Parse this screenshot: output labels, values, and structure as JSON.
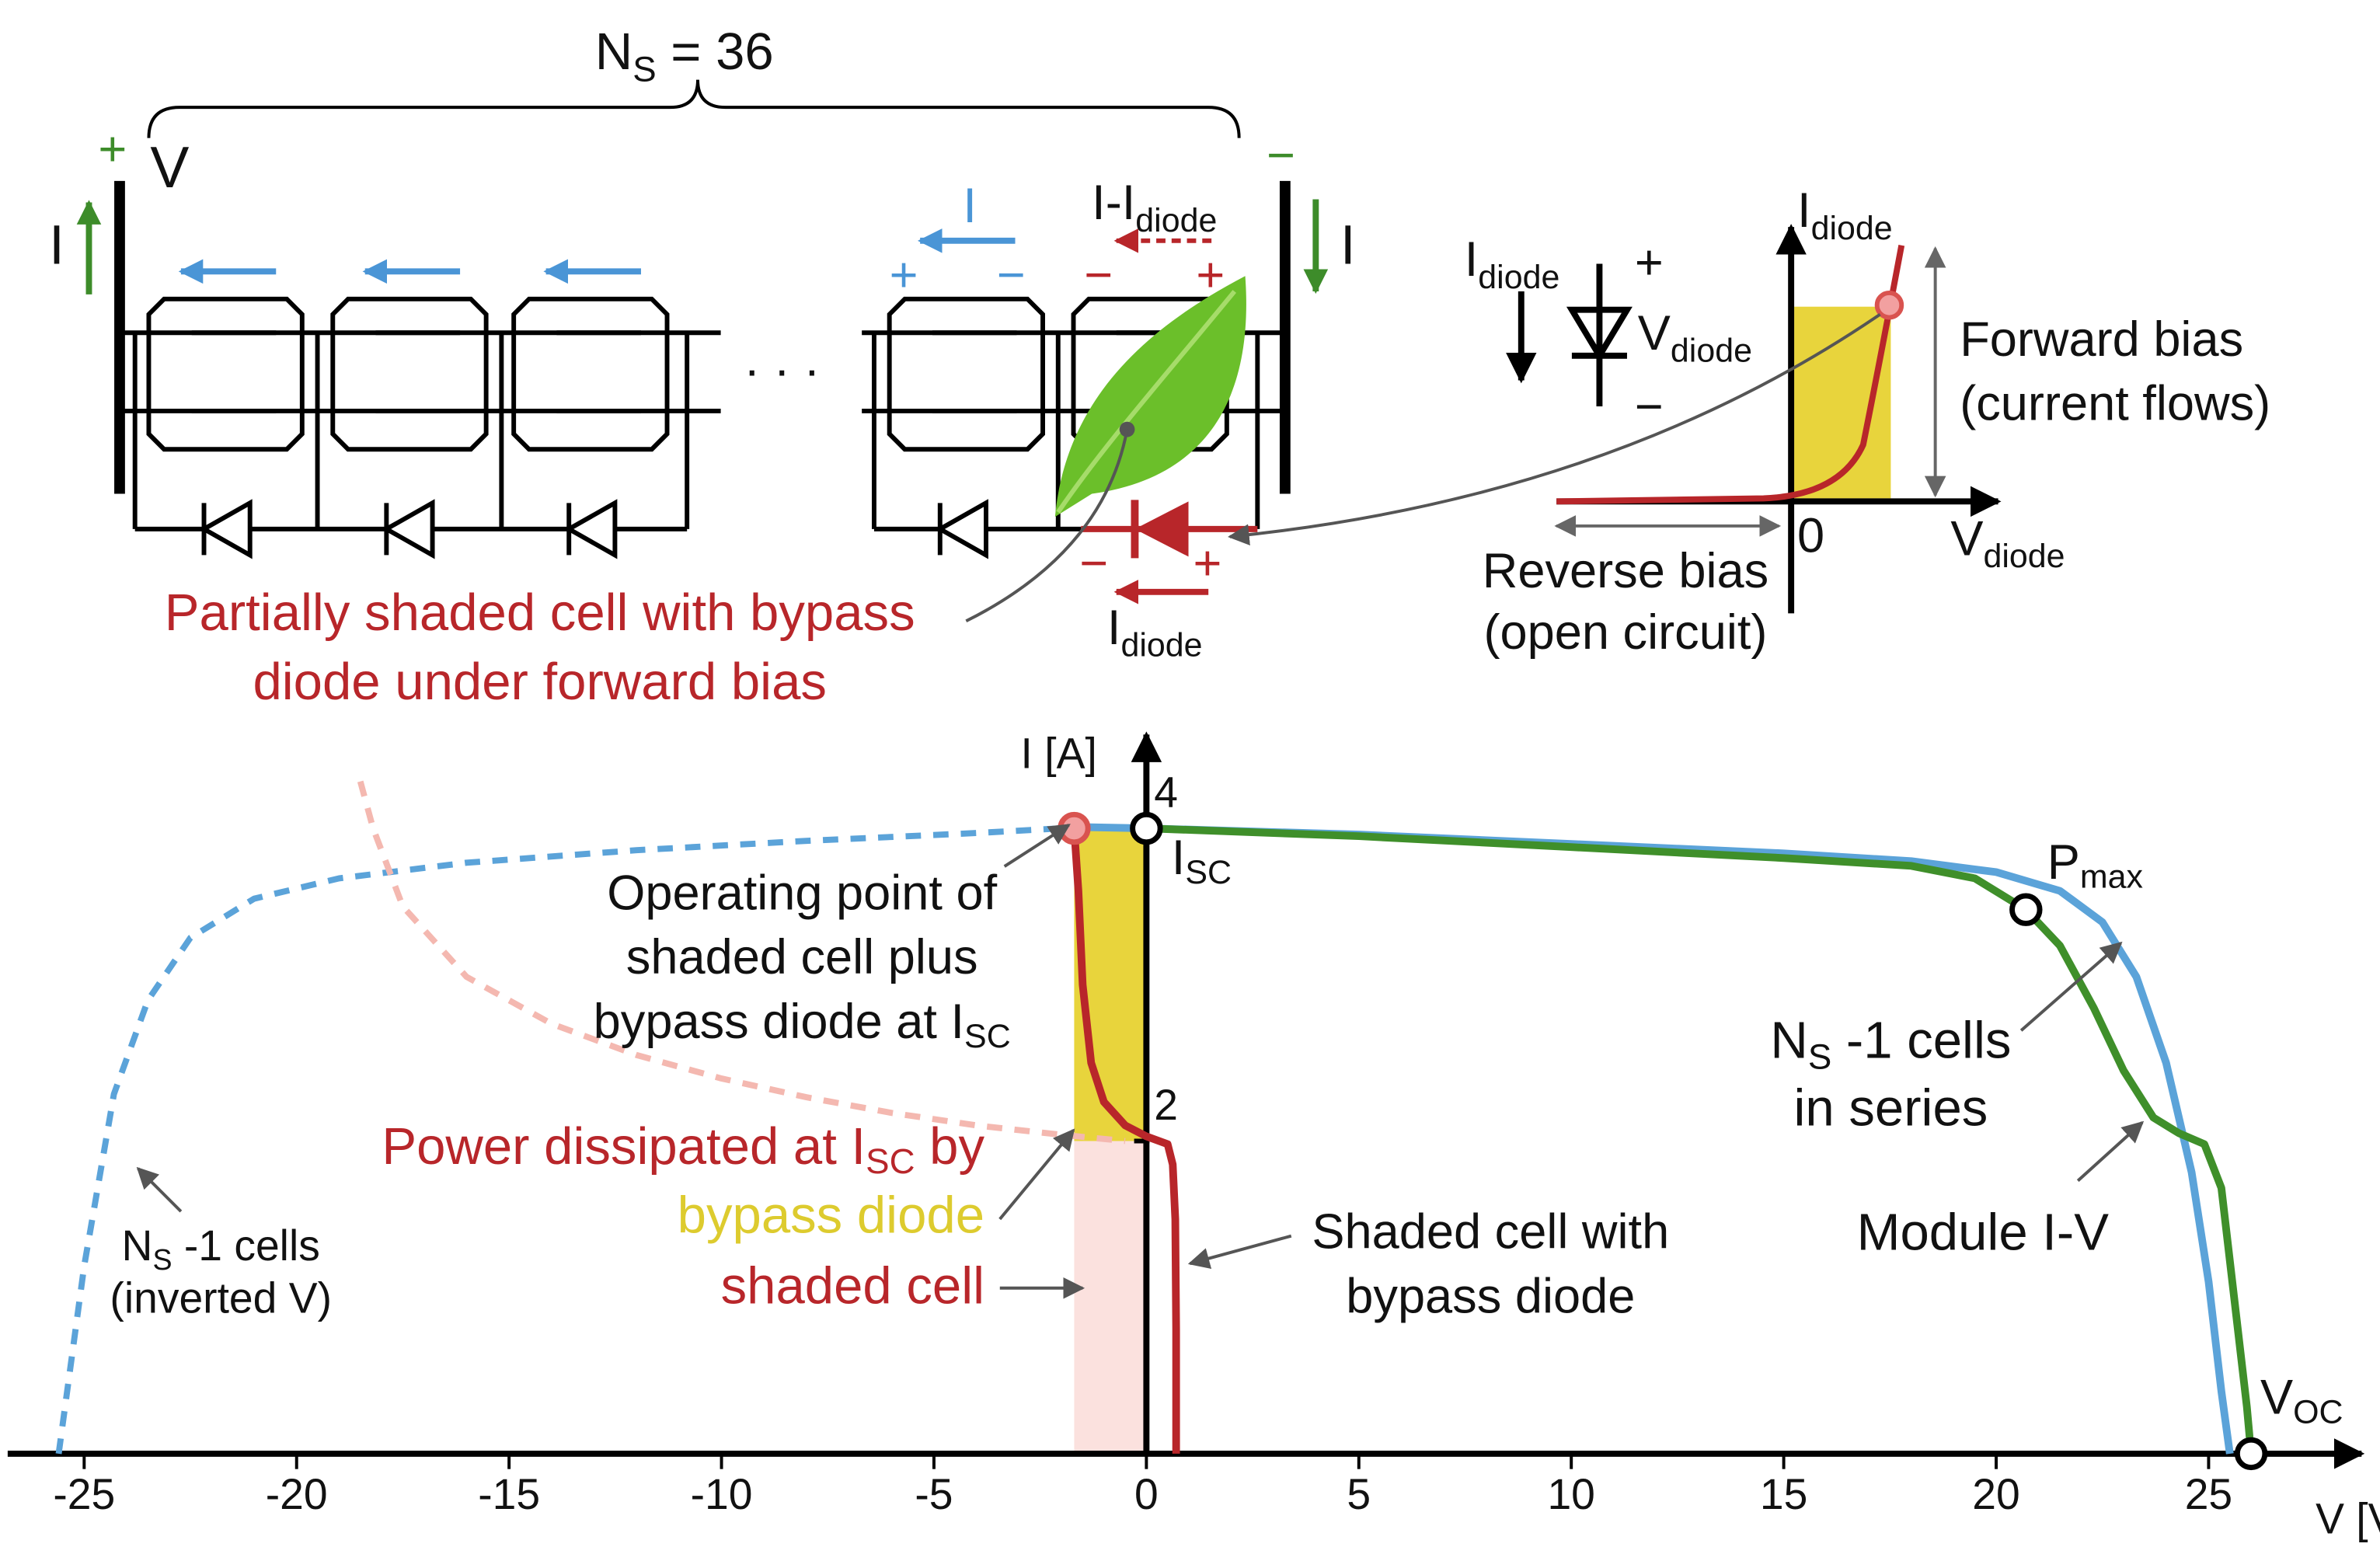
{
  "circuit": {
    "cell_count": [
      "N",
      "S",
      " = 36"
    ],
    "plus_terminal": "+",
    "voltage": "V",
    "minus_terminal": "−",
    "current_left": "I",
    "current_right": "I",
    "cell_current": "I",
    "cell_plus": "+",
    "cell_minus": "−",
    "diode_branch_current": [
      "I-I",
      "diode"
    ],
    "shaded_minus": "−",
    "shaded_plus": "+",
    "diode_minus": "−",
    "diode_plus": "+",
    "diode_current": [
      "I",
      "diode"
    ],
    "ellipsis": "· · ·",
    "caption": [
      "Partially shaded cell with bypass",
      "diode under forward bias"
    ]
  },
  "diode_inset": {
    "y_axis": [
      "I",
      "diode"
    ],
    "symbol_current": [
      "I",
      "diode"
    ],
    "symbol_plus": "+",
    "symbol_voltage": [
      "V",
      "diode"
    ],
    "symbol_minus": "−",
    "forward": [
      "Forward bias",
      "(current flows)"
    ],
    "reverse": [
      "Reverse bias",
      "(open circuit)"
    ],
    "origin": "0",
    "x_axis": [
      "V",
      "diode"
    ]
  },
  "chart_data": {
    "type": "line",
    "x_label": "V [V]",
    "y_label": "I [A]",
    "xlim": [
      -26.8,
      28.6
    ],
    "ylim": [
      0,
      4.6
    ],
    "xticks": [
      -25,
      -20,
      -15,
      -10,
      -5,
      0,
      5,
      10,
      15,
      20,
      25
    ],
    "yticks": [
      2,
      4
    ],
    "regions": [
      {
        "x": [
          -1.7,
          0
        ],
        "y": [
          2,
          4
        ],
        "color": "#e8d43c"
      },
      {
        "x": [
          -1.7,
          0
        ],
        "y": [
          0,
          2
        ],
        "color": "#fbe1de"
      }
    ],
    "series": [
      {
        "color": "#5ba3d9",
        "dashed": true,
        "x": [
          -25.6,
          -25,
          -24.3,
          -23.5,
          -22.5,
          -21,
          -19,
          -16,
          -12,
          -8,
          -4,
          -2
        ],
        "y": [
          0,
          1.2,
          2.3,
          2.9,
          3.3,
          3.55,
          3.68,
          3.78,
          3.86,
          3.92,
          3.97,
          4.0
        ]
      },
      {
        "color": "#f4b8b0",
        "dashed": true,
        "x": [
          -18.5,
          -18.2,
          -17.5,
          -16,
          -14,
          -12,
          -10,
          -8,
          -6,
          -4,
          -2,
          -0.5
        ],
        "y": [
          4.3,
          4.0,
          3.5,
          3.05,
          2.75,
          2.55,
          2.4,
          2.28,
          2.18,
          2.1,
          2.04,
          2.0
        ]
      },
      {
        "color": "#5ba3d9",
        "dashed": false,
        "x": [
          -2,
          0,
          5,
          10,
          15,
          18,
          20,
          21.5,
          22.5,
          23.3,
          24,
          24.6,
          25,
          25.3,
          25.5
        ],
        "y": [
          4.01,
          4.0,
          3.96,
          3.9,
          3.84,
          3.79,
          3.72,
          3.6,
          3.4,
          3.05,
          2.5,
          1.8,
          1.1,
          0.4,
          0
        ]
      },
      {
        "color": "#3f8f2a",
        "dashed": false,
        "x": [
          0,
          5,
          10,
          15,
          18,
          19.5,
          20.7,
          21.5,
          22.3,
          23,
          23.7,
          24.3,
          24.9,
          25.3,
          25.6,
          25.9,
          26.0
        ],
        "y": [
          4.0,
          3.95,
          3.88,
          3.81,
          3.76,
          3.68,
          3.48,
          3.25,
          2.85,
          2.45,
          2.15,
          2.05,
          1.98,
          1.7,
          1.0,
          0.3,
          0
        ]
      },
      {
        "color": "#b8262a",
        "dashed": false,
        "x": [
          -1.7,
          -1.6,
          -1.5,
          -1.3,
          -1.0,
          -0.5,
          0,
          0.5,
          0.62,
          0.68,
          0.7,
          0.7
        ],
        "y": [
          4.0,
          3.6,
          3.0,
          2.5,
          2.25,
          2.1,
          2.03,
          1.98,
          1.85,
          1.5,
          0.8,
          0
        ]
      }
    ],
    "points": [
      {
        "x": -1.7,
        "y": 4.0,
        "fill": "#f2a0a0",
        "stroke": "#d9534f"
      },
      {
        "x": 0,
        "y": 4.0,
        "fill": "#ffffff",
        "stroke": "#000000"
      },
      {
        "x": 20.7,
        "y": 3.48,
        "fill": "#ffffff",
        "stroke": "#000000"
      },
      {
        "x": 26.0,
        "y": 0,
        "fill": "#ffffff",
        "stroke": "#000000"
      }
    ],
    "annotations": {
      "isc": [
        "I",
        "SC"
      ],
      "pmax": [
        "P",
        "max"
      ],
      "voc": [
        "V",
        "OC"
      ],
      "operating_point": [
        "Operating point of",
        "shaded cell plus",
        "bypass diode at I",
        "SC"
      ],
      "series_cells": [
        "N",
        "S",
        " -1 cells",
        "in series"
      ],
      "module": "Module I-V",
      "shaded_cell": [
        "Shaded cell with",
        "bypass diode"
      ],
      "power": [
        "Power dissipated at I",
        "SC",
        " by"
      ],
      "power_diode": "bypass diode",
      "power_cell": "shaded cell",
      "inverted": [
        "N",
        "S",
        " -1 cells",
        "(inverted V)"
      ]
    }
  }
}
